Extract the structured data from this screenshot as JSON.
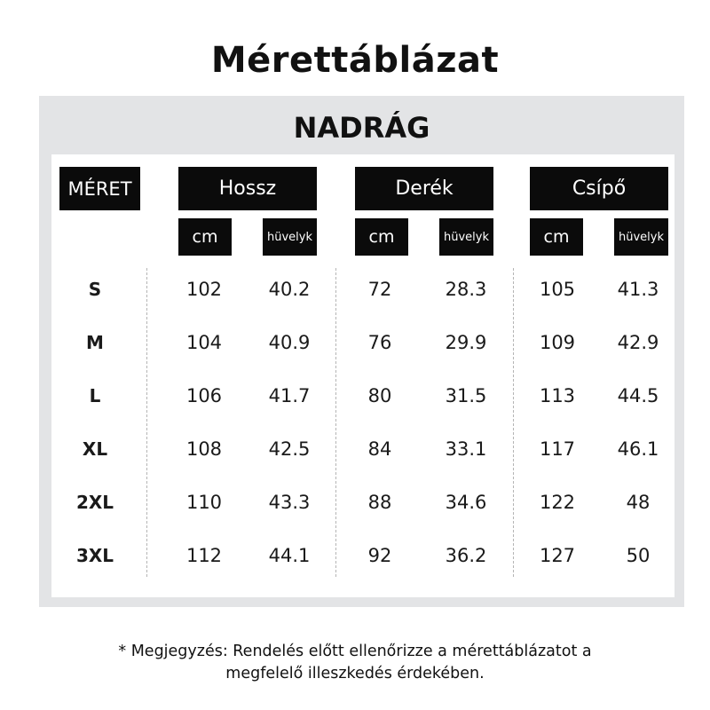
{
  "title": "Mérettáblázat",
  "panel_title": "NADRÁG",
  "header": {
    "size_label": "MÉRET",
    "groups": [
      "Hossz",
      "Derék",
      "Csípő"
    ],
    "unit_cm": "cm",
    "unit_in": "hüvelyk"
  },
  "rows": [
    {
      "size": "S",
      "values": [
        "102",
        "40.2",
        "72",
        "28.3",
        "105",
        "41.3"
      ]
    },
    {
      "size": "M",
      "values": [
        "104",
        "40.9",
        "76",
        "29.9",
        "109",
        "42.9"
      ]
    },
    {
      "size": "L",
      "values": [
        "106",
        "41.7",
        "80",
        "31.5",
        "113",
        "44.5"
      ]
    },
    {
      "size": "XL",
      "values": [
        "108",
        "42.5",
        "84",
        "33.1",
        "117",
        "46.1"
      ]
    },
    {
      "size": "2XL",
      "values": [
        "110",
        "43.3",
        "88",
        "34.6",
        "122",
        "48"
      ]
    },
    {
      "size": "3XL",
      "values": [
        "112",
        "44.1",
        "92",
        "36.2",
        "127",
        "50"
      ]
    }
  ],
  "note": {
    "line1": "* Megjegyzés: Rendelés előtt ellenőrizze a mérettáblázatot a",
    "line2": "megfelelő illeszkedés érdekében."
  },
  "colors": {
    "panel_bg": "#e3e4e6",
    "header_bg": "#0b0b0b",
    "text": "#111111"
  }
}
